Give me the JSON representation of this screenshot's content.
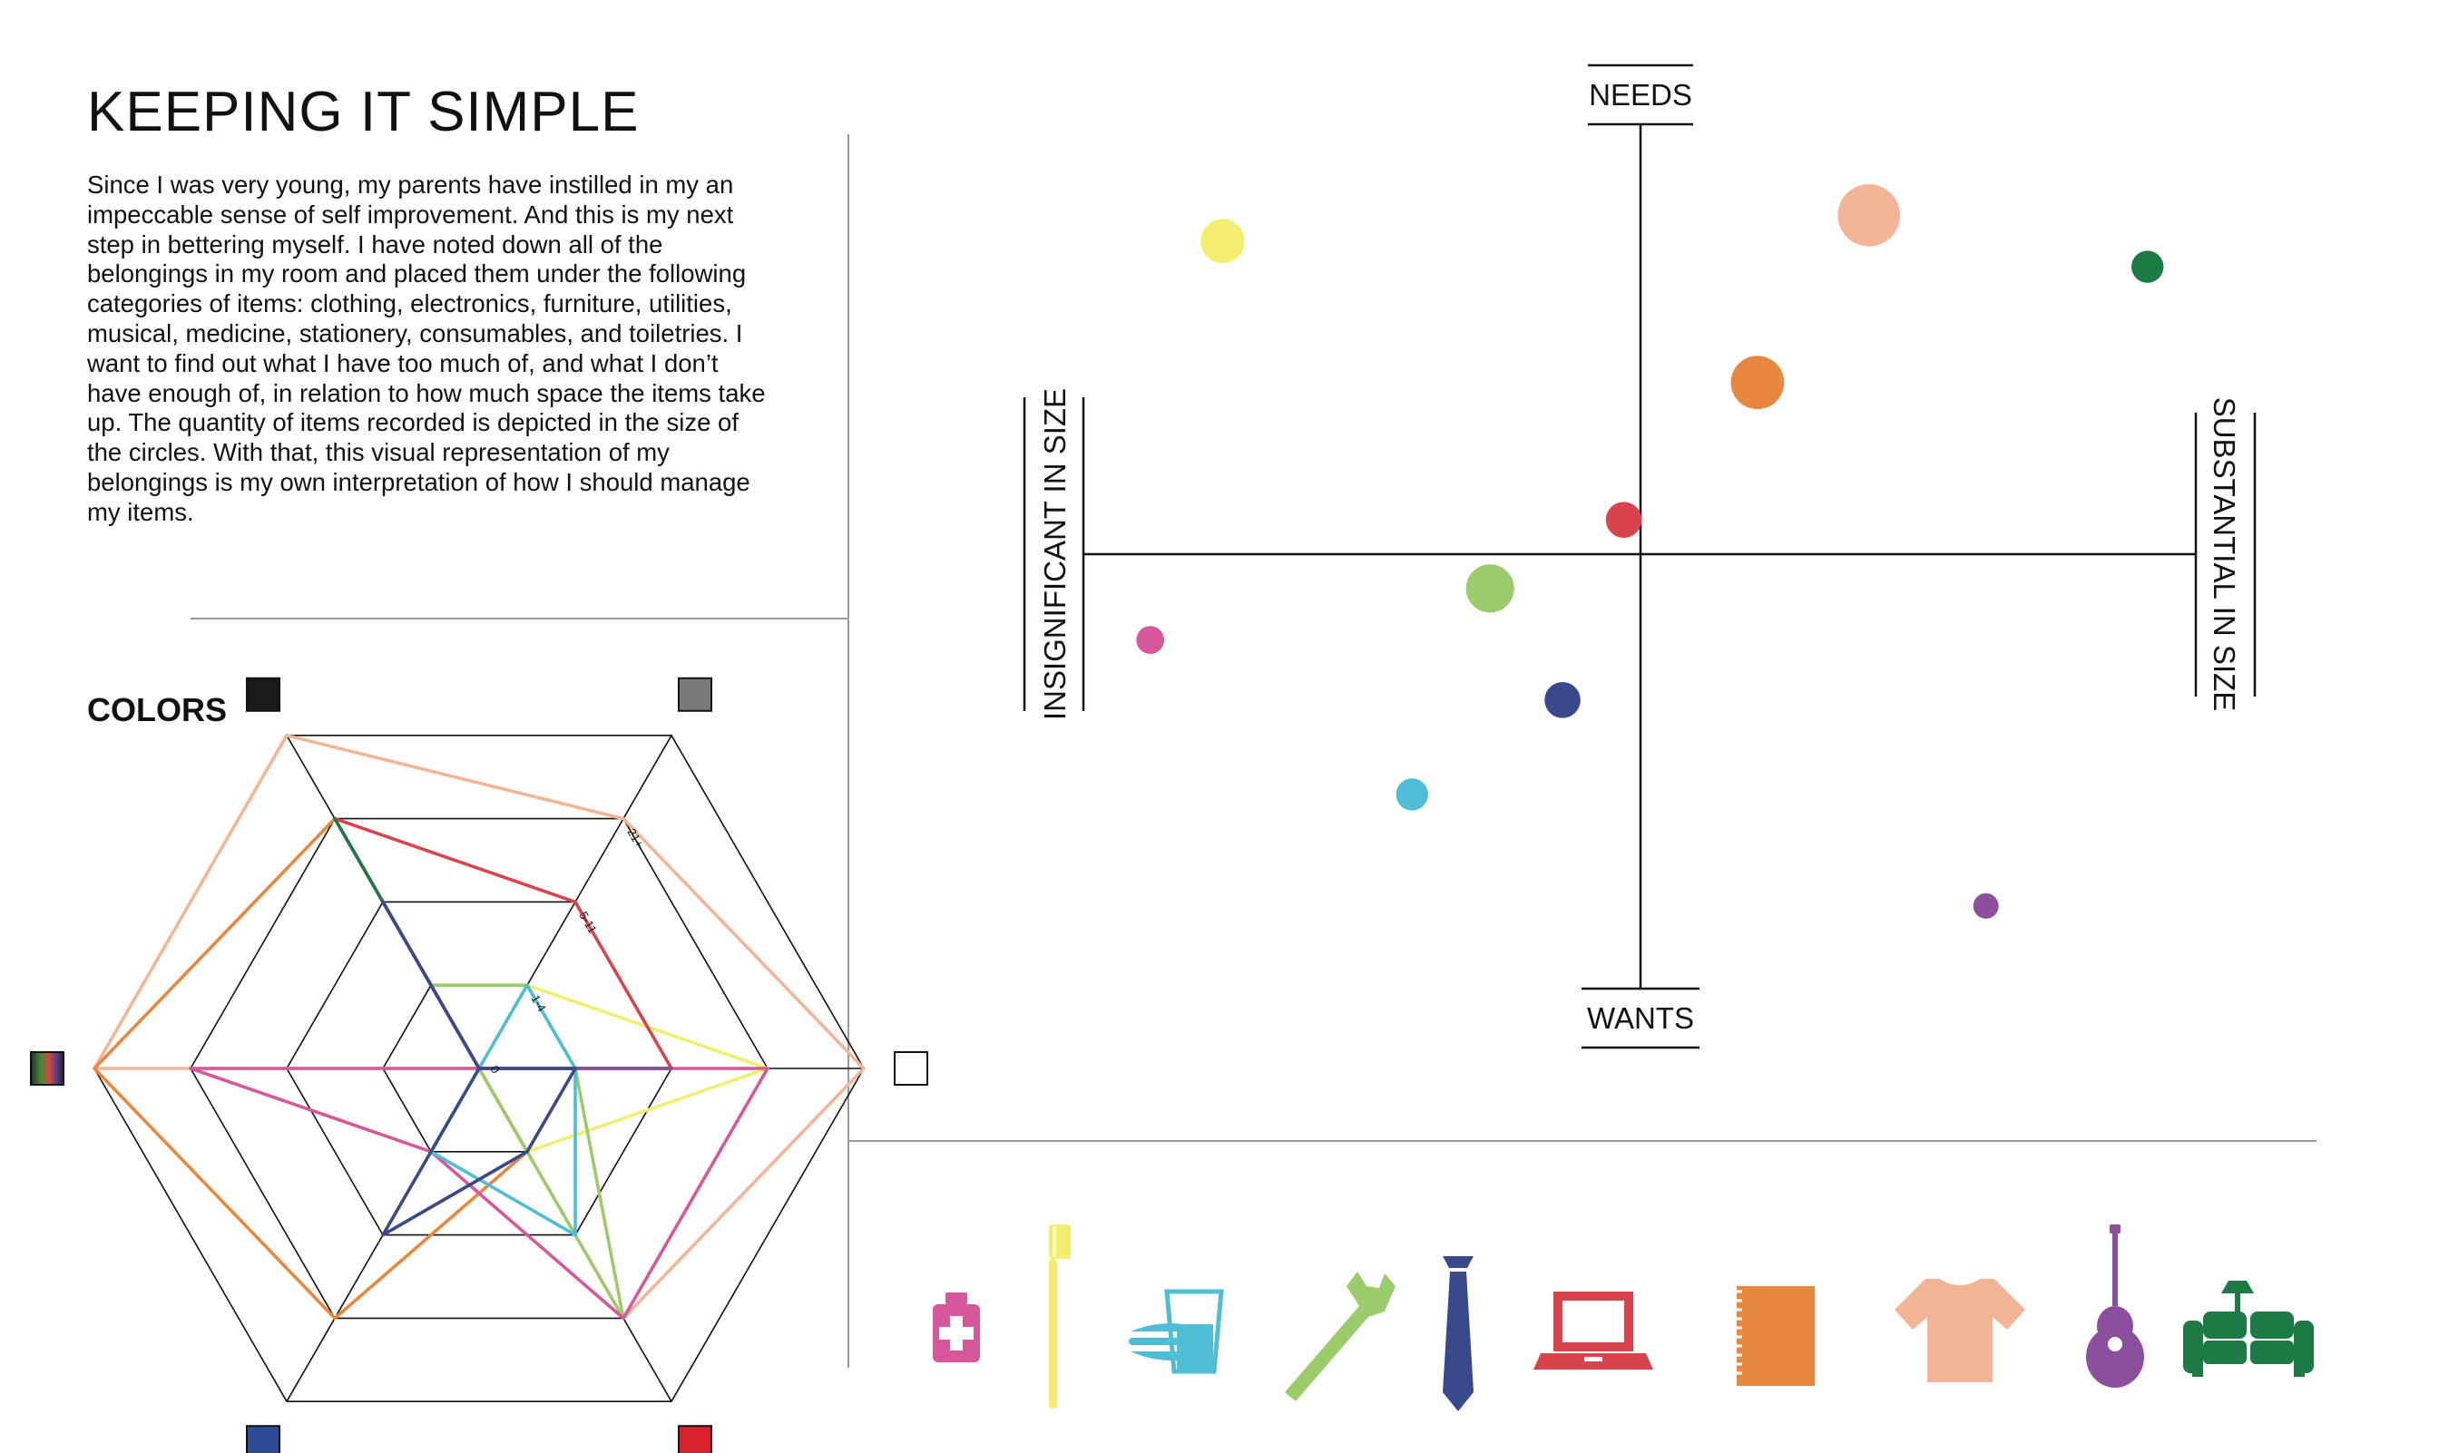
{
  "header": {
    "title": "KEEPING IT SIMPLE",
    "intro": "Since I was very young, my parents have instilled in my an impeccable sense of self improvement. And this is my next step in bettering myself. I have noted down all of the belongings in my room and placed them under the following categories of items: clothing, electronics, furniture, utilities, musical, medicine, stationery, consumables, and toiletries. I want to find out what I have too much of, and what I don’t have enough of, in relation to how much space the items take up. The quantity of items recorded is depicted in the size of the circles. With that, this visual representation of my belongings is my own interpretation of how I should manage my items."
  },
  "colors_section": {
    "title": "COLORS"
  },
  "chart_data": [
    {
      "type": "scatter",
      "axes": {
        "top": "NEEDS",
        "bottom": "WANTS",
        "left": "INSIGNIFICANT IN SIZE",
        "right": "SUBSTANTIAL IN SIZE"
      },
      "xlim": [
        -1,
        1
      ],
      "ylim": [
        -1,
        1
      ],
      "grid": false,
      "points": [
        {
          "color": "#f4ee70",
          "x": -0.75,
          "y": 0.73,
          "size": 3
        },
        {
          "color": "#f4b596",
          "x": 0.41,
          "y": 0.79,
          "size": 6
        },
        {
          "color": "#1e7a44",
          "x": 0.91,
          "y": 0.67,
          "size": 1.6
        },
        {
          "color": "#e8883f",
          "x": 0.21,
          "y": 0.4,
          "size": 4.4
        },
        {
          "color": "#d9444c",
          "x": -0.03,
          "y": 0.08,
          "size": 2
        },
        {
          "color": "#9bcb6a",
          "x": -0.27,
          "y": -0.08,
          "size": 3.6
        },
        {
          "color": "#d6579a",
          "x": -0.88,
          "y": -0.2,
          "size": 1.2
        },
        {
          "color": "#394a8c",
          "x": -0.14,
          "y": -0.34,
          "size": 2
        },
        {
          "color": "#4fbdd3",
          "x": -0.41,
          "y": -0.56,
          "size": 1.6
        },
        {
          "color": "#8b4f9e",
          "x": 0.62,
          "y": -0.82,
          "size": 1
        }
      ]
    },
    {
      "type": "radar",
      "axes": [
        "black",
        "gray",
        "white",
        "red",
        "blue",
        "multicolor"
      ],
      "axis_colors": [
        "#1a1a1a",
        "#7a7a7a",
        "#ffffff",
        "#d9222a",
        "#2e4c96",
        "multicolor"
      ],
      "ring_labels": [
        "0",
        "1-4",
        "5-11",
        "21+"
      ],
      "levels": 4,
      "series": [
        {
          "color": "#f4b596",
          "values": [
            4,
            3,
            4,
            3,
            0,
            4
          ]
        },
        {
          "color": "#e8883f",
          "values": [
            3,
            0,
            0,
            1,
            3,
            4
          ]
        },
        {
          "color": "#f4ee70",
          "values": [
            1,
            1,
            3,
            1,
            2,
            0
          ]
        },
        {
          "color": "#9bcb6a",
          "values": [
            1,
            1,
            1,
            3,
            0,
            0
          ]
        },
        {
          "color": "#d6579a",
          "values": [
            0,
            0,
            3,
            3,
            1,
            3
          ]
        },
        {
          "color": "#4fbdd3",
          "values": [
            0,
            1,
            1,
            2,
            1,
            0
          ]
        },
        {
          "color": "#d9444c",
          "values": [
            3,
            2,
            2,
            0,
            0,
            0
          ]
        },
        {
          "color": "#1e7a44",
          "values": [
            3,
            0,
            2,
            0,
            0,
            0
          ]
        },
        {
          "color": "#8b4f9e",
          "values": [
            2,
            0,
            2,
            0,
            0,
            0
          ]
        },
        {
          "color": "#394a8c",
          "values": [
            2,
            0,
            1,
            1,
            2,
            0
          ]
        }
      ]
    }
  ],
  "legend_icons": [
    {
      "icon": "medicine-bottle-icon",
      "color": "#d6579a"
    },
    {
      "icon": "toothbrush-icon",
      "color": "#f4ee70"
    },
    {
      "icon": "food-drink-icon",
      "color": "#4fbdd3"
    },
    {
      "icon": "wrench-icon",
      "color": "#9bcb6a"
    },
    {
      "icon": "necktie-icon",
      "color": "#394a8c"
    },
    {
      "icon": "laptop-icon",
      "color": "#d9444c"
    },
    {
      "icon": "notebook-icon",
      "color": "#e8883f"
    },
    {
      "icon": "tshirt-icon",
      "color": "#f4b596"
    },
    {
      "icon": "guitar-icon",
      "color": "#8b4f9e"
    },
    {
      "icon": "sofa-icon",
      "color": "#1e7a44"
    }
  ]
}
